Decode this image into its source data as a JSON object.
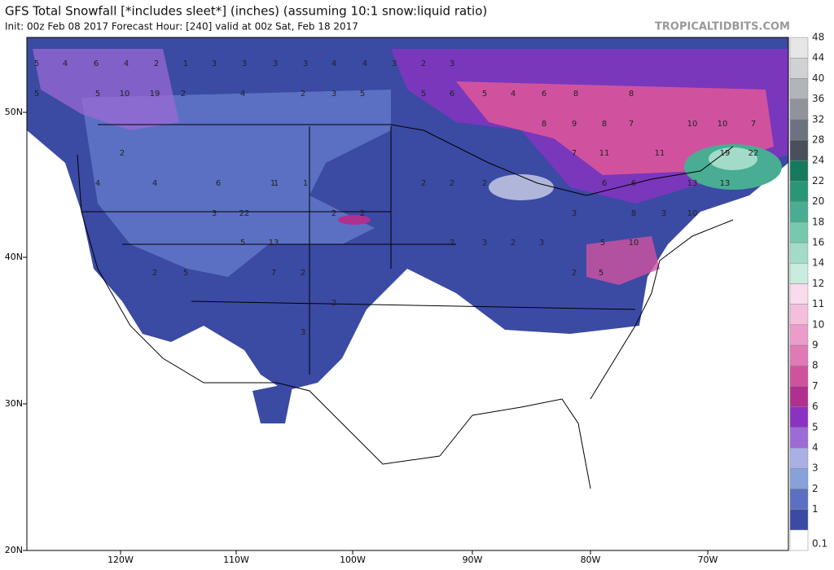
{
  "header": {
    "title": "GFS Total Snowfall [*includes sleet*] (inches) (assuming 10:1 snow:liquid ratio)",
    "subtitle": "Init: 00z Feb 08 2017   Forecast Hour: [240]   valid at 00z Sat, Feb 18 2017",
    "credit": "TROPICALTIDBITS.COM"
  },
  "lat_labels": [
    "50N",
    "40N",
    "30N",
    "20N"
  ],
  "lon_labels": [
    "120W",
    "110W",
    "100W",
    "90W",
    "80W",
    "70W"
  ],
  "colorbar": {
    "levels": [
      0.1,
      1,
      2,
      3,
      4,
      5,
      6,
      7,
      8,
      9,
      10,
      11,
      12,
      14,
      16,
      18,
      20,
      22,
      24,
      28,
      32,
      36,
      40,
      44,
      48
    ],
    "colors": [
      "#ffffff",
      "#3b4aa3",
      "#5b70c3",
      "#86a2d8",
      "#aab0e6",
      "#9e6ad6",
      "#8a32c2",
      "#b0308f",
      "#d0529f",
      "#e07ab7",
      "#eb9ccb",
      "#f3bfdd",
      "#f8dcec",
      "#c8ecde",
      "#a2dcc8",
      "#76c8ae",
      "#48ad92",
      "#2a9678",
      "#157a5e",
      "#4a4f5c",
      "#6d7280",
      "#8f939c",
      "#b1b4b9",
      "#cfd1d3",
      "#e6e7e4"
    ]
  },
  "map_labels": [
    5,
    4,
    6,
    4,
    2,
    1,
    3,
    3,
    3,
    3,
    4,
    4,
    3,
    2,
    3,
    5,
    10,
    19,
    2,
    4,
    2,
    3,
    5,
    5,
    6,
    5,
    4,
    6,
    8,
    8,
    8,
    9,
    8,
    7,
    10,
    10,
    7,
    7,
    11,
    11,
    19,
    22,
    13,
    13,
    6,
    6,
    8,
    3,
    10,
    5,
    10,
    3,
    2,
    2,
    2,
    1,
    1,
    2,
    2,
    3,
    3,
    2,
    3,
    2,
    5,
    22,
    4,
    13,
    7,
    2,
    2,
    5,
    6,
    4,
    1,
    2,
    3,
    5,
    2,
    2,
    5
  ]
}
